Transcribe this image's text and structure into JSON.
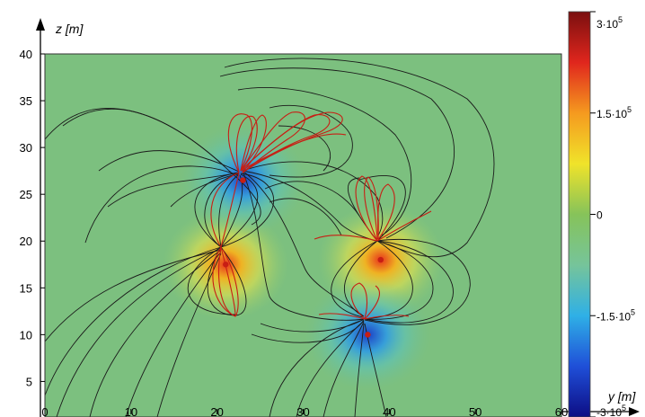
{
  "chart_data": {
    "type": "heatmap",
    "title": "",
    "xlabel": "y [m]",
    "ylabel": "z [m]",
    "xlim": [
      0,
      60
    ],
    "ylim": [
      0,
      40
    ],
    "x_ticks": [
      0,
      10,
      20,
      30,
      40,
      50,
      60
    ],
    "y_ticks": [
      5,
      10,
      15,
      20,
      25,
      30,
      35,
      40
    ],
    "colorbar": {
      "min": -300000,
      "max": 300000,
      "labels": [
        {
          "value": 300000,
          "base": "3·10",
          "exp": "5"
        },
        {
          "value": 150000,
          "base": "1.5·10",
          "exp": "5"
        },
        {
          "value": 0,
          "base": "0",
          "exp": ""
        },
        {
          "value": -150000,
          "base": "-1.5·10",
          "exp": "5"
        },
        {
          "value": -300000,
          "base": "-3·10",
          "exp": "5"
        }
      ],
      "colors": [
        "#0d0d84",
        "#1f4fd8",
        "#2fb0e6",
        "#76c49a",
        "#86c35a",
        "#f0e32a",
        "#f59a1f",
        "#e0261d",
        "#7a0f0f"
      ]
    },
    "background_color": "#7cc07f",
    "fieldline_color": "#1a1a1a",
    "source_line_color": "#c81e14",
    "sources": [
      {
        "y": 21,
        "z": 17.5,
        "sign": "positive"
      },
      {
        "y": 23,
        "z": 26.5,
        "sign": "negative"
      },
      {
        "y": 39,
        "z": 18,
        "sign": "positive"
      },
      {
        "y": 37.5,
        "z": 10,
        "sign": "negative"
      }
    ]
  }
}
